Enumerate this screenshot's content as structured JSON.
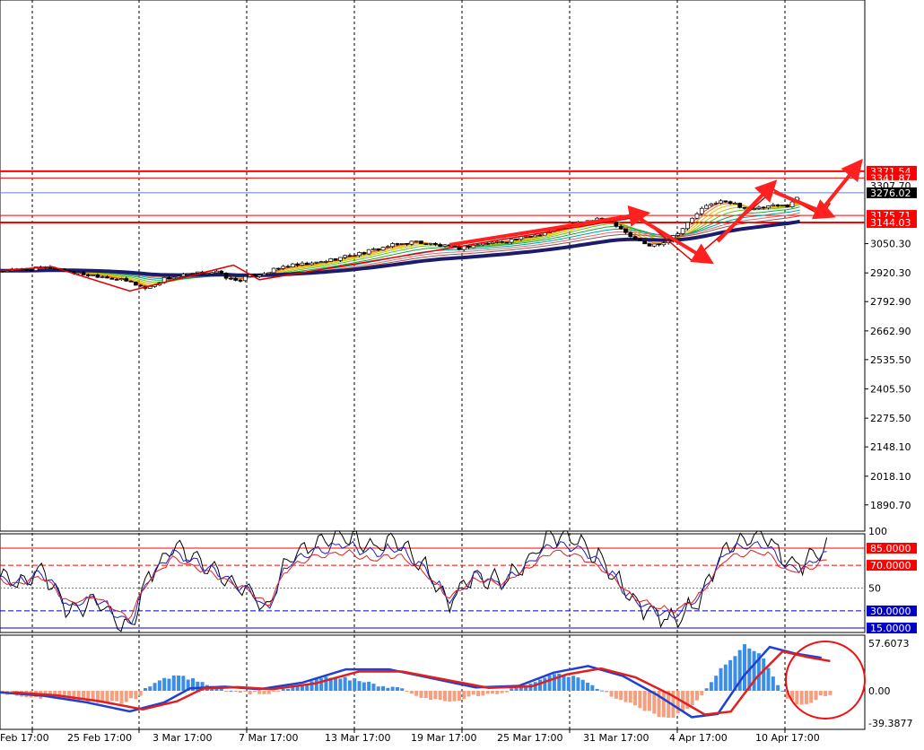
{
  "chart_data": [
    {
      "type": "candlestick",
      "panel": "price",
      "y_ticks": [
        "3050.30",
        "2920.30",
        "2792.90",
        "2662.90",
        "2535.50",
        "2405.50",
        "2275.50",
        "2148.10",
        "2018.10",
        "1890.70"
      ],
      "y_tick_values": [
        3050.3,
        2920.3,
        2792.9,
        2662.9,
        2535.5,
        2405.5,
        2275.5,
        2148.1,
        2018.1,
        1890.7
      ],
      "ylim": [
        1850,
        3395
      ],
      "horizontal_levels": [
        {
          "label": "3371.54",
          "value": 3371.54,
          "color": "#ff0000"
        },
        {
          "label": "3341.87",
          "value": 3341.87,
          "color": "#ff0000"
        },
        {
          "label": "3307.70",
          "value": 3307.7,
          "color": "#ffffff"
        },
        {
          "label": "3276.02",
          "value": 3276.02,
          "color": "#000000"
        },
        {
          "label": "3175.71",
          "value": 3175.71,
          "color": "#ff0000"
        },
        {
          "label": "3144.03",
          "value": 3144.03,
          "color": "#ff0000"
        }
      ],
      "blue_level": 3276.02,
      "x_labels": [
        "Feb 17:00",
        "25 Feb 17:00",
        "3 Mar 17:00",
        "7 Mar 17:00",
        "13 Mar 17:00",
        "19 Mar 17:00",
        "25 Mar 17:00",
        "31 Mar 17:00",
        "4 Apr 17:00",
        "10 Apr 17:00"
      ],
      "close_path": [
        [
          0,
          2930
        ],
        [
          3,
          2935
        ],
        [
          6,
          2945
        ],
        [
          9,
          2918
        ],
        [
          12,
          2905
        ],
        [
          15,
          2880
        ],
        [
          17,
          2850
        ],
        [
          19,
          2895
        ],
        [
          22,
          2915
        ],
        [
          25,
          2925
        ],
        [
          27,
          2885
        ],
        [
          29,
          2905
        ],
        [
          31,
          2925
        ],
        [
          33,
          2950
        ],
        [
          36,
          2960
        ],
        [
          39,
          2985
        ],
        [
          42,
          3010
        ],
        [
          45,
          3040
        ],
        [
          48,
          3060
        ],
        [
          51,
          3040
        ],
        [
          53,
          3030
        ],
        [
          55,
          3045
        ],
        [
          58,
          3060
        ],
        [
          61,
          3080
        ],
        [
          64,
          3110
        ],
        [
          67,
          3145
        ],
        [
          70,
          3160
        ],
        [
          71.5,
          3130
        ],
        [
          73,
          3080
        ],
        [
          75,
          3040
        ],
        [
          77,
          3060
        ],
        [
          79,
          3120
        ],
        [
          81,
          3200
        ],
        [
          83,
          3240
        ],
        [
          85,
          3225
        ],
        [
          87,
          3200
        ],
        [
          89,
          3215
        ],
        [
          91,
          3220
        ],
        [
          92.5,
          3262
        ]
      ],
      "grid": "vertical dotted",
      "legend": "none"
    },
    {
      "type": "line",
      "panel": "oscillator",
      "y_ticks": [
        "100",
        "85.0000",
        "70.0000",
        "50",
        "30.0000",
        "15.0000"
      ],
      "y_tick_values": [
        100,
        85,
        70,
        50,
        30,
        15
      ],
      "ylim": [
        0,
        100
      ],
      "levels": [
        {
          "label": "85.0000",
          "value": 85,
          "color": "#ff0000"
        },
        {
          "label": "70.0000",
          "value": 70,
          "color": "#ff0000"
        },
        {
          "label": "30.0000",
          "value": 30,
          "color": "#0000cc"
        },
        {
          "label": "15.0000",
          "value": 15,
          "color": "#0000cc"
        }
      ]
    },
    {
      "type": "histogram",
      "panel": "macd",
      "y_ticks": [
        "57.6073",
        "0.00",
        "-39.3877"
      ],
      "y_tick_values": [
        57.6073,
        0,
        -39.3877
      ],
      "ylim": [
        -50,
        68
      ]
    }
  ]
}
